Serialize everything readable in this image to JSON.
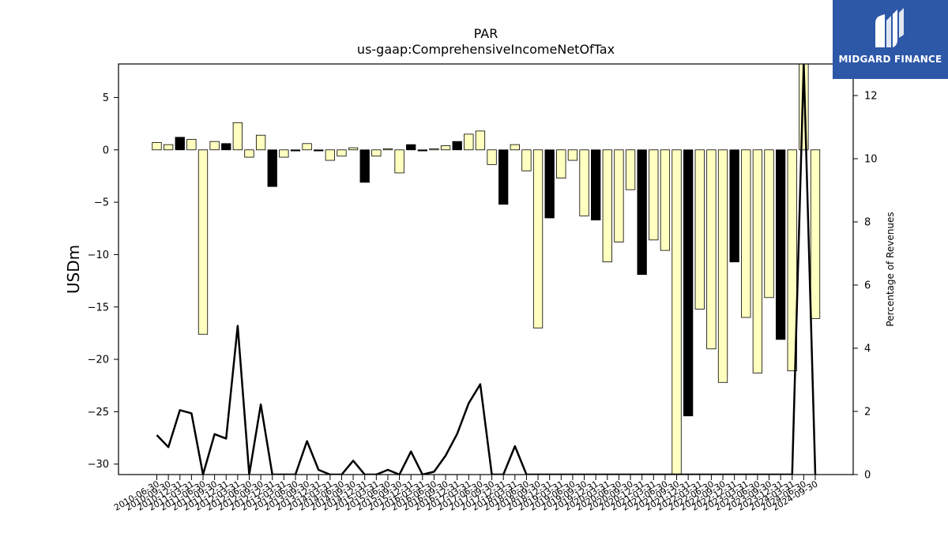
{
  "logo": {
    "text": "MIDGARD FINANCE",
    "icon": "midgard-logo-icon",
    "bg": "#2d57a7"
  },
  "chart_data": {
    "type": "bar",
    "title": "PAR",
    "subtitle": "us-gaap:ComprehensiveIncomeNetOfTax",
    "ylabel": "USDm",
    "y2label": "Percentage of Revenues",
    "ylim": [
      -31,
      8.2
    ],
    "y2lim": [
      0,
      13.0
    ],
    "yticks": [
      5,
      0,
      -5,
      -10,
      -15,
      -20,
      -25,
      -30
    ],
    "y2ticks": [
      0,
      2,
      4,
      6,
      8,
      10,
      12
    ],
    "grid": false,
    "colors": {
      "pale": "#ffffc0",
      "dark": "#000000",
      "line": "#000000"
    },
    "bars": [
      {
        "date": "2010-06-30",
        "value": 0.7,
        "color": "pale"
      },
      {
        "date": "2010-09-30",
        "value": 0.5,
        "color": "pale"
      },
      {
        "date": "2010-12-31",
        "value": 1.2,
        "color": "dark"
      },
      {
        "date": "2011-03-31",
        "value": 1.0,
        "color": "pale"
      },
      {
        "date": "2011-06-30",
        "value": -17.6,
        "color": "pale"
      },
      {
        "date": "2011-09-30",
        "value": 0.8,
        "color": "pale"
      },
      {
        "date": "2011-12-31",
        "value": 0.6,
        "color": "dark"
      },
      {
        "date": "2012-03-31",
        "value": 2.6,
        "color": "pale"
      },
      {
        "date": "2012-06-30",
        "value": -0.7,
        "color": "pale"
      },
      {
        "date": "2012-09-30",
        "value": 1.4,
        "color": "pale"
      },
      {
        "date": "2012-12-31",
        "value": -3.5,
        "color": "dark"
      },
      {
        "date": "2013-03-31",
        "value": -0.7,
        "color": "pale"
      },
      {
        "date": "2013-06-30",
        "value": -0.1,
        "color": "dark"
      },
      {
        "date": "2013-09-30",
        "value": 0.6,
        "color": "pale"
      },
      {
        "date": "2013-12-31",
        "value": -0.1,
        "color": "dark"
      },
      {
        "date": "2014-03-31",
        "value": -1.0,
        "color": "pale"
      },
      {
        "date": "2014-06-30",
        "value": -0.6,
        "color": "pale"
      },
      {
        "date": "2014-09-30",
        "value": 0.2,
        "color": "pale"
      },
      {
        "date": "2014-12-31",
        "value": -3.1,
        "color": "dark"
      },
      {
        "date": "2015-03-31",
        "value": -0.6,
        "color": "pale"
      },
      {
        "date": "2015-06-30",
        "value": 0.1,
        "color": "pale"
      },
      {
        "date": "2015-09-30",
        "value": -2.2,
        "color": "pale"
      },
      {
        "date": "2015-12-31",
        "value": 0.5,
        "color": "dark"
      },
      {
        "date": "2016-03-31",
        "value": -0.1,
        "color": "dark"
      },
      {
        "date": "2016-06-30",
        "value": 0.1,
        "color": "pale"
      },
      {
        "date": "2016-09-30",
        "value": 0.4,
        "color": "pale"
      },
      {
        "date": "2016-12-31",
        "value": 0.8,
        "color": "dark"
      },
      {
        "date": "2017-03-31",
        "value": 1.5,
        "color": "pale"
      },
      {
        "date": "2017-06-30",
        "value": 1.8,
        "color": "pale"
      },
      {
        "date": "2017-09-30",
        "value": -1.4,
        "color": "pale"
      },
      {
        "date": "2017-12-31",
        "value": -5.2,
        "color": "dark"
      },
      {
        "date": "2018-03-31",
        "value": 0.5,
        "color": "pale"
      },
      {
        "date": "2018-06-30",
        "value": -2.0,
        "color": "pale"
      },
      {
        "date": "2018-09-30",
        "value": -17.0,
        "color": "pale"
      },
      {
        "date": "2018-12-31",
        "value": -6.5,
        "color": "dark"
      },
      {
        "date": "2019-03-31",
        "value": -2.7,
        "color": "pale"
      },
      {
        "date": "2019-06-30",
        "value": -1.0,
        "color": "pale"
      },
      {
        "date": "2019-09-30",
        "value": -6.3,
        "color": "pale"
      },
      {
        "date": "2019-12-31",
        "value": -6.7,
        "color": "dark"
      },
      {
        "date": "2020-03-31",
        "value": -10.7,
        "color": "pale"
      },
      {
        "date": "2020-06-30",
        "value": -8.8,
        "color": "pale"
      },
      {
        "date": "2020-09-30",
        "value": -3.8,
        "color": "pale"
      },
      {
        "date": "2020-12-31",
        "value": -11.9,
        "color": "dark"
      },
      {
        "date": "2021-03-31",
        "value": -8.6,
        "color": "pale"
      },
      {
        "date": "2021-06-30",
        "value": -9.6,
        "color": "pale"
      },
      {
        "date": "2021-09-30",
        "value": -31.0,
        "color": "pale"
      },
      {
        "date": "2021-12-31",
        "value": -25.4,
        "color": "dark"
      },
      {
        "date": "2022-03-31",
        "value": -15.2,
        "color": "pale"
      },
      {
        "date": "2022-06-30",
        "value": -19.0,
        "color": "pale"
      },
      {
        "date": "2022-09-30",
        "value": -22.2,
        "color": "pale"
      },
      {
        "date": "2022-12-31",
        "value": -10.7,
        "color": "dark"
      },
      {
        "date": "2023-03-31",
        "value": -16.0,
        "color": "pale"
      },
      {
        "date": "2023-06-30",
        "value": -21.3,
        "color": "pale"
      },
      {
        "date": "2023-09-30",
        "value": -14.1,
        "color": "pale"
      },
      {
        "date": "2023-12-31",
        "value": -18.1,
        "color": "dark"
      },
      {
        "date": "2024-03-31",
        "value": -21.1,
        "color": "pale"
      },
      {
        "date": "2024-06-30",
        "value": 8.2,
        "color": "pale"
      },
      {
        "date": "2024-09-30",
        "value": -16.1,
        "color": "pale"
      }
    ],
    "line_series": {
      "axis": "right",
      "points": [
        {
          "date": "2010-06-30",
          "value": 1.25
        },
        {
          "date": "2010-09-30",
          "value": 0.87
        },
        {
          "date": "2010-12-31",
          "value": 2.04
        },
        {
          "date": "2011-03-31",
          "value": 1.94
        },
        {
          "date": "2011-06-30",
          "value": 0
        },
        {
          "date": "2011-09-30",
          "value": 1.28
        },
        {
          "date": "2011-12-31",
          "value": 1.14
        },
        {
          "date": "2012-03-31",
          "value": 4.71
        },
        {
          "date": "2012-06-30",
          "value": 0
        },
        {
          "date": "2012-09-30",
          "value": 2.22
        },
        {
          "date": "2012-12-31",
          "value": 0
        },
        {
          "date": "2013-03-31",
          "value": 0
        },
        {
          "date": "2013-06-30",
          "value": 0
        },
        {
          "date": "2013-09-30",
          "value": 1.06
        },
        {
          "date": "2013-12-31",
          "value": 0.15
        },
        {
          "date": "2014-03-31",
          "value": 0
        },
        {
          "date": "2014-06-30",
          "value": 0
        },
        {
          "date": "2014-09-30",
          "value": 0.44
        },
        {
          "date": "2014-12-31",
          "value": 0
        },
        {
          "date": "2015-03-31",
          "value": 0
        },
        {
          "date": "2015-06-30",
          "value": 0.15
        },
        {
          "date": "2015-09-30",
          "value": 0
        },
        {
          "date": "2015-12-31",
          "value": 0.73
        },
        {
          "date": "2016-03-31",
          "value": 0
        },
        {
          "date": "2016-06-30",
          "value": 0.09
        },
        {
          "date": "2016-09-30",
          "value": 0.6
        },
        {
          "date": "2016-12-31",
          "value": 1.29
        },
        {
          "date": "2017-03-31",
          "value": 2.26
        },
        {
          "date": "2017-06-30",
          "value": 2.86
        },
        {
          "date": "2017-09-30",
          "value": 0
        },
        {
          "date": "2017-12-31",
          "value": 0
        },
        {
          "date": "2018-03-31",
          "value": 0.9
        },
        {
          "date": "2018-06-30",
          "value": 0
        },
        {
          "date": "2018-09-30",
          "value": 0
        },
        {
          "date": "2018-12-31",
          "value": 0
        },
        {
          "date": "2019-03-31",
          "value": 0
        },
        {
          "date": "2019-06-30",
          "value": 0
        },
        {
          "date": "2019-09-30",
          "value": 0
        },
        {
          "date": "2019-12-31",
          "value": 0
        },
        {
          "date": "2020-03-31",
          "value": 0
        },
        {
          "date": "2020-06-30",
          "value": 0
        },
        {
          "date": "2020-09-30",
          "value": 0
        },
        {
          "date": "2020-12-31",
          "value": 0
        },
        {
          "date": "2021-03-31",
          "value": 0
        },
        {
          "date": "2021-06-30",
          "value": 0
        },
        {
          "date": "2021-09-30",
          "value": 0
        },
        {
          "date": "2021-12-31",
          "value": 0
        },
        {
          "date": "2022-03-31",
          "value": 0
        },
        {
          "date": "2022-06-30",
          "value": 0
        },
        {
          "date": "2022-09-30",
          "value": 0
        },
        {
          "date": "2022-12-31",
          "value": 0
        },
        {
          "date": "2023-03-31",
          "value": 0
        },
        {
          "date": "2023-06-30",
          "value": 0
        },
        {
          "date": "2023-09-30",
          "value": 0
        },
        {
          "date": "2023-12-31",
          "value": 0
        },
        {
          "date": "2024-03-31",
          "value": 0
        },
        {
          "date": "2024-06-30",
          "value": 13.0
        },
        {
          "date": "2024-09-30",
          "value": 0
        }
      ]
    }
  }
}
